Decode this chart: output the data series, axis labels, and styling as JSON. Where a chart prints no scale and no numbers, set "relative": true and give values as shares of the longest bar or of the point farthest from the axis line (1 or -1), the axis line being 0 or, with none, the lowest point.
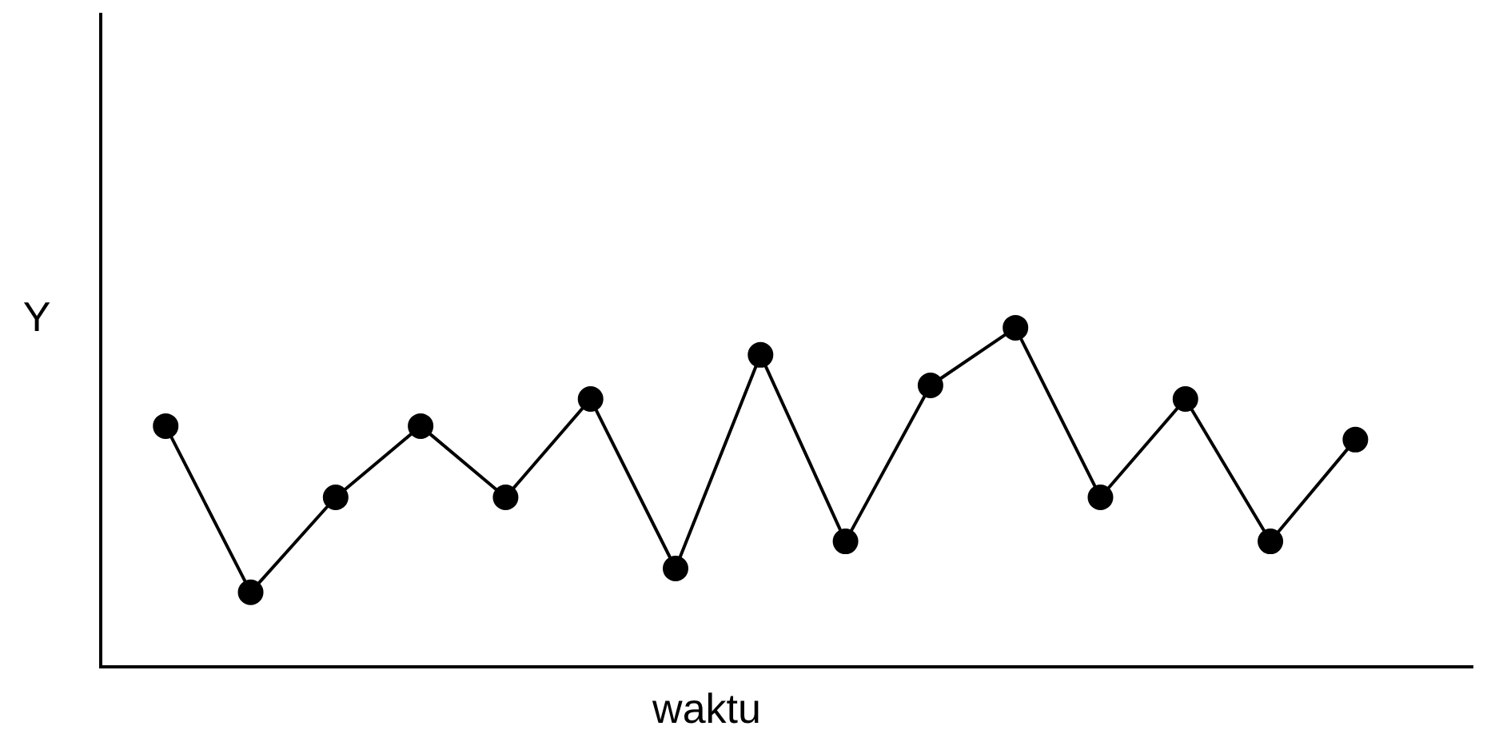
{
  "chart_data": {
    "type": "line",
    "xlabel": "waktu",
    "ylabel": "Y",
    "relative": true,
    "categories": [
      null,
      null,
      null,
      null,
      null,
      null,
      null,
      null,
      null,
      null,
      null,
      null,
      null,
      null,
      null
    ],
    "series": [
      {
        "color": "#000000",
        "values": [
          0.71,
          0.22,
          0.5,
          0.71,
          0.5,
          0.79,
          0.29,
          0.92,
          0.37,
          0.83,
          1,
          0.5,
          0.79,
          0.37,
          0.67
        ]
      }
    ],
    "marker": "circle",
    "line_style": "solid",
    "grid": false,
    "legend": false
  }
}
